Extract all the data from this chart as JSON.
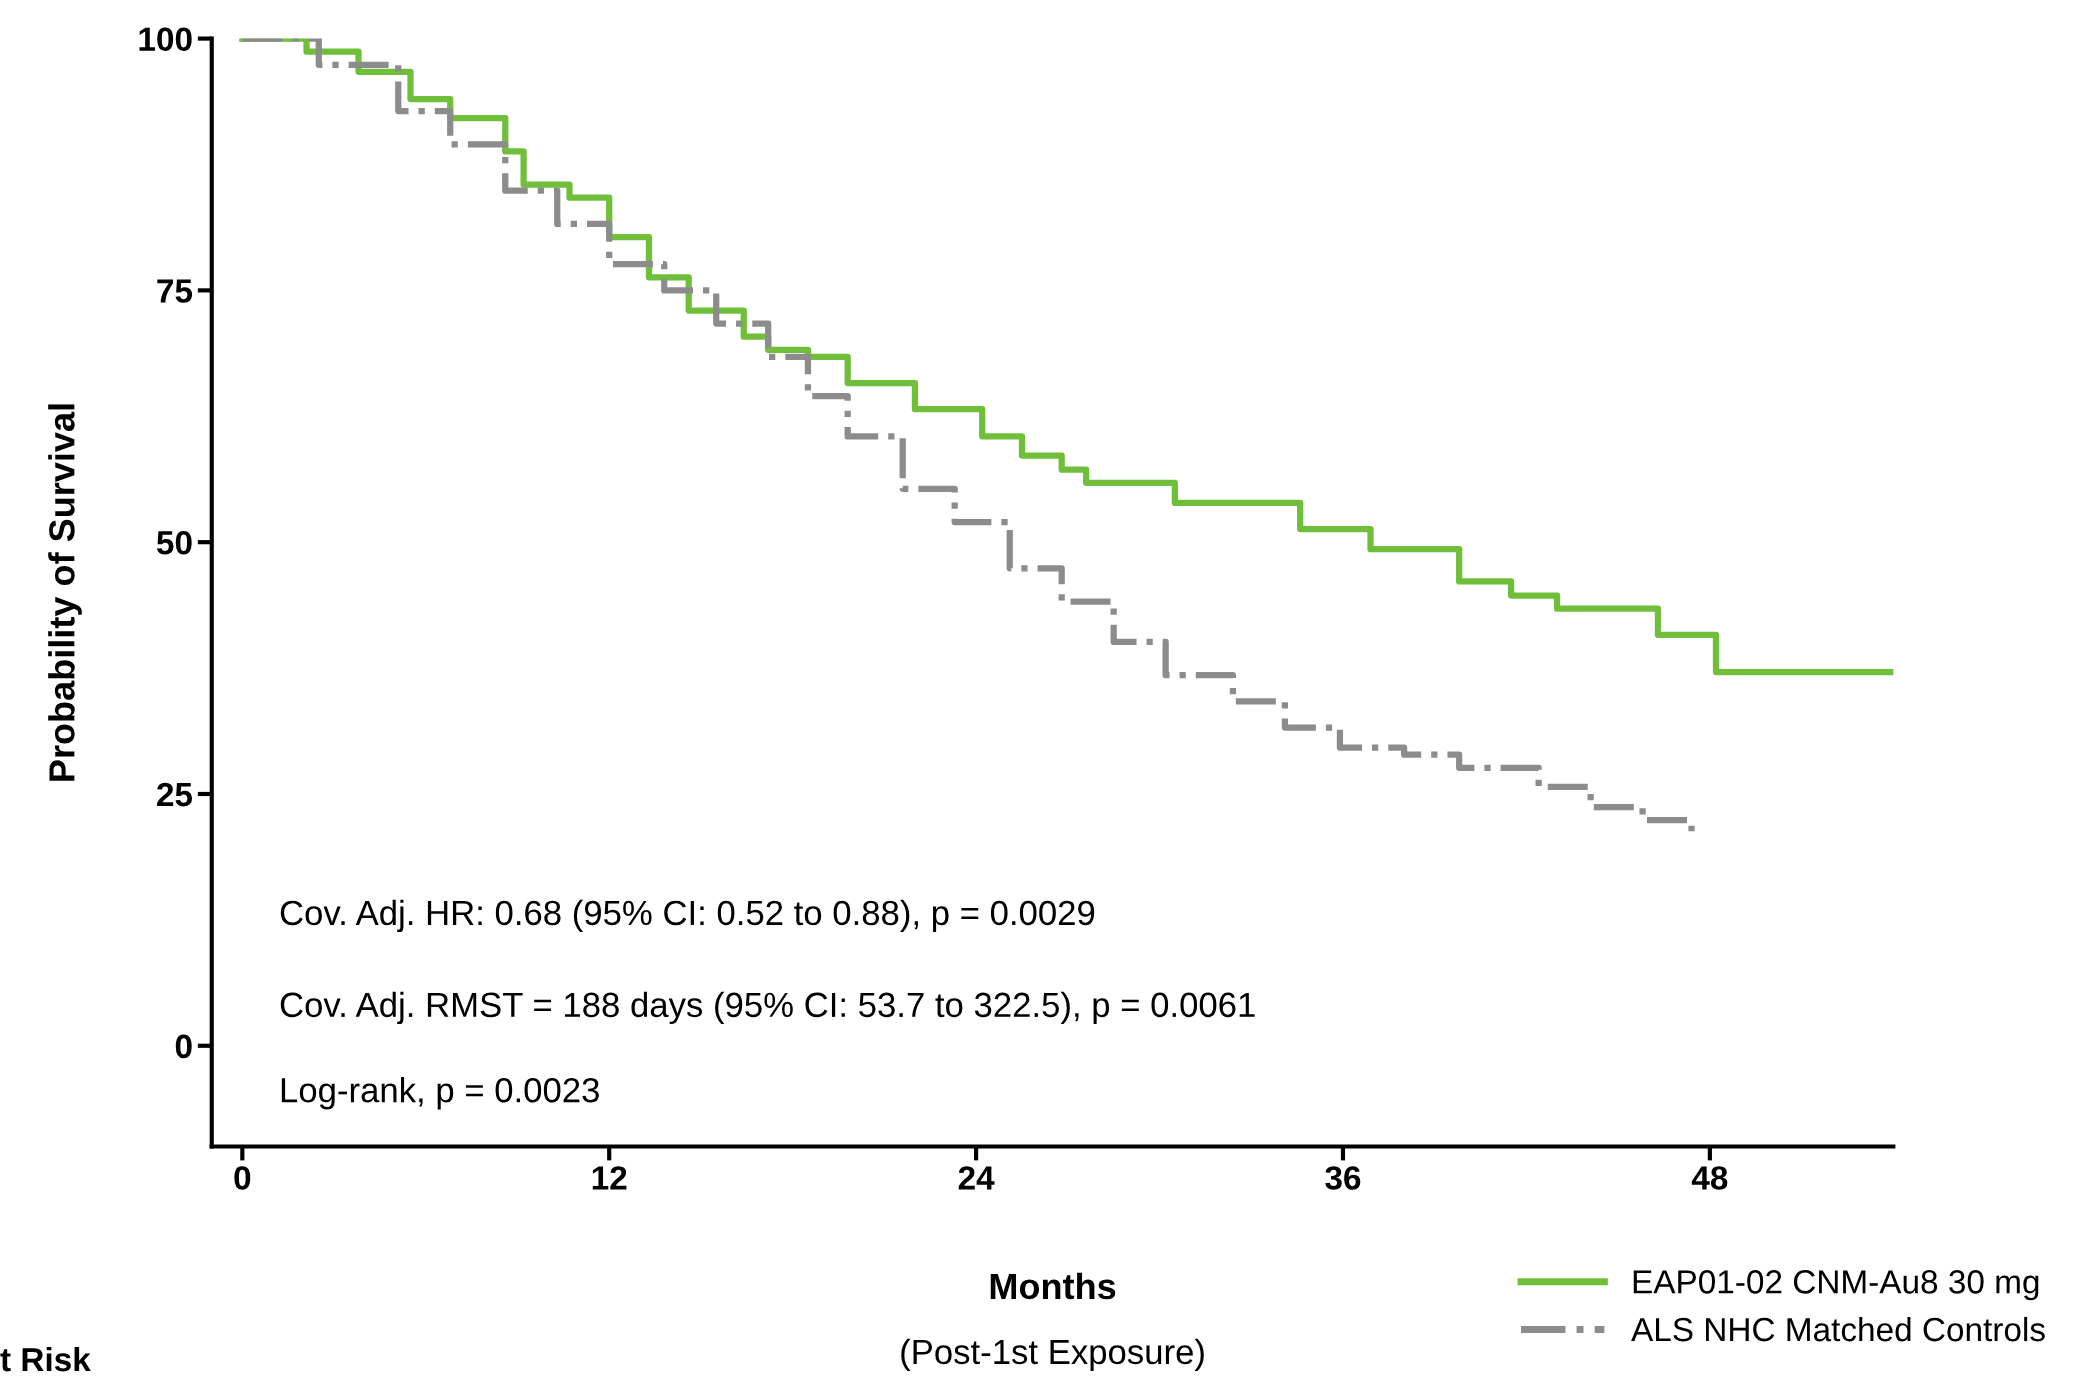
{
  "chart_data": {
    "type": "step",
    "ylabel": "Probability of Survival",
    "xlabel": "Months",
    "xlim": [
      -1,
      54
    ],
    "xticks": [
      0,
      12,
      24,
      36,
      48
    ],
    "ylim": [
      -10,
      100
    ],
    "yticks": [
      0,
      25,
      50,
      75,
      100
    ],
    "grid": false,
    "legend": "bottom right",
    "marker": "none",
    "series": [
      {
        "name": "EAP01-02 CNM-Au8 30 mg",
        "color": "#6fbf3a",
        "line_style": "solid",
        "x": [
          0,
          2.1,
          3.8,
          5.5,
          6.8,
          8.6,
          9.2,
          10.7,
          12,
          13.3,
          14.6,
          16.4,
          17.2,
          18.5,
          19.8,
          22,
          24.2,
          25.5,
          26.8,
          27.6,
          30.5,
          34.6,
          36.9,
          39.8,
          41.5,
          43,
          46.3,
          48.2,
          54
        ],
        "values": [
          100,
          98.7,
          96.7,
          94,
          92.1,
          88.8,
          85.5,
          84.2,
          80.3,
          76.3,
          73,
          70.4,
          69.1,
          68.4,
          65.8,
          63.2,
          60.5,
          58.6,
          57.2,
          55.9,
          53.9,
          51.3,
          49.3,
          46.1,
          44.7,
          43.4,
          40.8,
          37.1,
          37.1
        ]
      },
      {
        "name": "ALS NHC Matched Controls",
        "color": "#8c8c8c",
        "line_style": "dashed",
        "x": [
          0,
          2.5,
          5.1,
          6.8,
          8.6,
          10.3,
          12,
          13.8,
          15.5,
          17.2,
          18.5,
          19.8,
          21.6,
          23.3,
          25.1,
          26.8,
          28.5,
          30.2,
          32.4,
          34.1,
          35.9,
          38,
          39.8,
          42.4,
          44.1,
          45.8,
          47.4
        ],
        "values": [
          100,
          97.4,
          92.8,
          89.5,
          84.9,
          81.6,
          77.6,
          75,
          71.7,
          68.4,
          64.5,
          60.5,
          55.3,
          52,
          47.4,
          44.1,
          40.1,
          36.8,
          34.2,
          31.6,
          29.6,
          28.9,
          27.6,
          25.7,
          23.7,
          22.4,
          21.3
        ]
      }
    ],
    "annotations": [
      "Cov. Adj. HR: 0.68 (95% CI: 0.52 to 0.88), p = 0.0029",
      "Cov. Adj. RMST = 188 days (95% CI: 53.7 to 322.5), p = 0.0061",
      "Log-rank, p = 0.0023",
      "(Post-1st Exposure)",
      "t Risk"
    ]
  }
}
